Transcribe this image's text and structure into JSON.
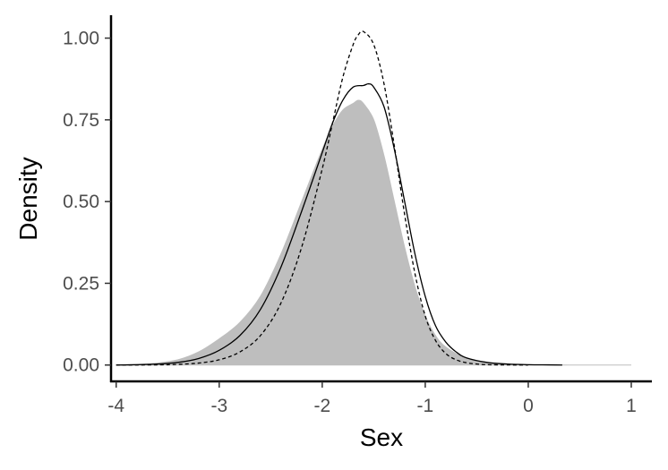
{
  "chart_data": {
    "type": "area",
    "title": "",
    "xlabel": "Sex",
    "ylabel": "Density",
    "xlim": [
      -4.05,
      1.2
    ],
    "ylim": [
      -0.05,
      1.07
    ],
    "x_ticks": [
      {
        "value": -4,
        "label": "-4"
      },
      {
        "value": -3,
        "label": "-3"
      },
      {
        "value": -2,
        "label": "-2"
      },
      {
        "value": -1,
        "label": "-1"
      },
      {
        "value": 0,
        "label": "0"
      },
      {
        "value": 1,
        "label": "1"
      }
    ],
    "y_ticks": [
      {
        "value": 0,
        "label": "0.00"
      },
      {
        "value": 0.25,
        "label": "0.25"
      },
      {
        "value": 0.5,
        "label": "0.50"
      },
      {
        "value": 0.75,
        "label": "0.75"
      },
      {
        "value": 1,
        "label": "1.00"
      }
    ],
    "grid": false,
    "legend": "none",
    "series": [
      {
        "style": "filled",
        "color": "#bebebe",
        "x": [
          -4.0,
          -3.8,
          -3.6,
          -3.4,
          -3.2,
          -3.0,
          -2.8,
          -2.6,
          -2.4,
          -2.2,
          -2.0,
          -1.9,
          -1.8,
          -1.7,
          -1.65,
          -1.6,
          -1.5,
          -1.4,
          -1.3,
          -1.2,
          -1.1,
          -1.0,
          -0.9,
          -0.8,
          -0.6,
          -0.4,
          -0.2,
          0.0,
          0.2,
          0.4,
          0.6,
          0.8,
          1.0
        ],
        "y": [
          0.0,
          0.002,
          0.006,
          0.016,
          0.04,
          0.08,
          0.13,
          0.21,
          0.34,
          0.5,
          0.66,
          0.73,
          0.78,
          0.8,
          0.81,
          0.8,
          0.75,
          0.64,
          0.5,
          0.36,
          0.24,
          0.15,
          0.09,
          0.055,
          0.02,
          0.008,
          0.003,
          0.001,
          0.0005,
          0.0,
          0.0,
          0.0,
          0.0
        ]
      },
      {
        "style": "solid",
        "color": "#000000",
        "x": [
          -4.0,
          -3.8,
          -3.6,
          -3.4,
          -3.2,
          -3.0,
          -2.8,
          -2.6,
          -2.4,
          -2.2,
          -2.0,
          -1.9,
          -1.8,
          -1.7,
          -1.6,
          -1.55,
          -1.5,
          -1.4,
          -1.3,
          -1.2,
          -1.1,
          -1.0,
          -0.9,
          -0.8,
          -0.7,
          -0.6,
          -0.4,
          -0.2,
          0.0,
          0.2,
          0.33
        ],
        "y": [
          0.0,
          0.001,
          0.003,
          0.008,
          0.02,
          0.045,
          0.09,
          0.17,
          0.3,
          0.47,
          0.65,
          0.74,
          0.81,
          0.85,
          0.855,
          0.86,
          0.85,
          0.79,
          0.66,
          0.5,
          0.34,
          0.21,
          0.12,
          0.07,
          0.04,
          0.022,
          0.008,
          0.003,
          0.001,
          0.0005,
          0.0
        ]
      },
      {
        "style": "dashed",
        "color": "#000000",
        "x": [
          -4.0,
          -3.6,
          -3.4,
          -3.2,
          -3.0,
          -2.8,
          -2.6,
          -2.4,
          -2.2,
          -2.0,
          -1.9,
          -1.8,
          -1.7,
          -1.65,
          -1.6,
          -1.5,
          -1.4,
          -1.3,
          -1.2,
          -1.1,
          -1.0,
          -0.9,
          -0.8,
          -0.7,
          -0.6,
          -0.5,
          -0.4,
          -0.2,
          0.0
        ],
        "y": [
          0.0,
          0.0005,
          0.002,
          0.006,
          0.016,
          0.04,
          0.09,
          0.19,
          0.36,
          0.6,
          0.74,
          0.88,
          0.98,
          1.01,
          1.02,
          0.98,
          0.86,
          0.67,
          0.46,
          0.28,
          0.15,
          0.075,
          0.035,
          0.016,
          0.007,
          0.003,
          0.001,
          0.0003,
          0.0
        ]
      }
    ]
  }
}
